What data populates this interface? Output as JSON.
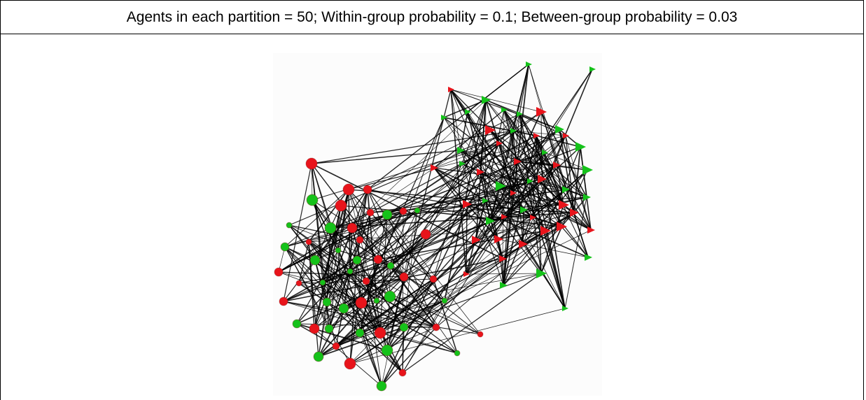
{
  "caption": "Agents in each partition = 50; Within-group probability = 0.1; Between-group probability = 0.03",
  "legend_colors": {
    "node_red": "#e8141b",
    "node_green": "#15c21a",
    "edge": "#000000"
  },
  "groups": [
    {
      "shape": "circle",
      "icon": "circle-node"
    },
    {
      "shape": "triangle",
      "icon": "triangle-node"
    }
  ],
  "network": {
    "nodes_per_group": 50,
    "within_group_probability": 0.1,
    "between_group_probability": 0.03
  }
}
